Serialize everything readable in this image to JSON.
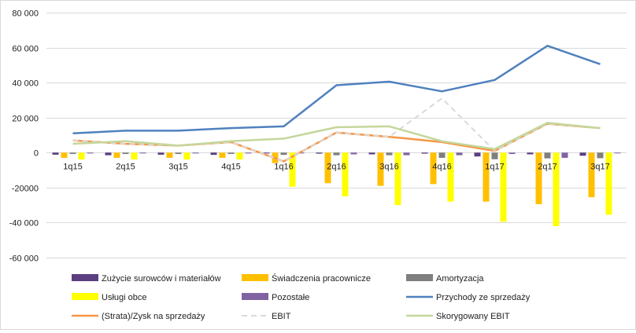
{
  "chart_data": {
    "type": "bar",
    "categories": [
      "1q15",
      "2q15",
      "3q15",
      "4q15",
      "1q16",
      "2q16",
      "3q16",
      "4q16",
      "1q17",
      "2q17",
      "3q17"
    ],
    "ylim": [
      -60000,
      80000
    ],
    "yticks": [
      80000,
      60000,
      40000,
      20000,
      0,
      -20000,
      -40000,
      -60000
    ],
    "ytick_labels": [
      "80 000",
      "60 000",
      "40 000",
      "20 000",
      "0",
      "-20000",
      "-40 000",
      "-60 000"
    ],
    "grid": true,
    "legend_position": "bottom",
    "bar_series": [
      {
        "name": "Zużycie surowców i materiałów",
        "color": "#5b3f80",
        "values": [
          -1200,
          -1500,
          -1200,
          -1300,
          -500,
          -600,
          -1000,
          -600,
          -2200,
          -1000,
          -1800
        ]
      },
      {
        "name": "Świadczenia pracownicze",
        "color": "#ffc000",
        "values": [
          -3000,
          -3000,
          -3000,
          -3000,
          -6000,
          -17500,
          -19000,
          -18000,
          -28000,
          -29500,
          -25500
        ]
      },
      {
        "name": "Amortyzacja",
        "color": "#7f7f7f",
        "values": [
          -800,
          -800,
          -800,
          -800,
          -1300,
          -1500,
          -1500,
          -3000,
          -3800,
          -3300,
          -3200
        ]
      },
      {
        "name": "Usługi obce",
        "color": "#ffff00",
        "values": [
          -4000,
          -4000,
          -4000,
          -4000,
          -19500,
          -25000,
          -30000,
          -28000,
          -39500,
          -42000,
          -35500
        ]
      },
      {
        "name": "Pozostałe",
        "color": "#8064a2",
        "values": [
          -500,
          -500,
          -500,
          -500,
          -500,
          -1000,
          -1500,
          -1500,
          -800,
          -3000,
          -400
        ]
      }
    ],
    "line_series": [
      {
        "name": "Przychody ze sprzedaży",
        "color": "#4f81bd",
        "dash": false,
        "values": [
          11000,
          12500,
          12500,
          14000,
          15000,
          38500,
          40500,
          35000,
          41500,
          61000,
          50500
        ]
      },
      {
        "name": "(Strata)/Zysk na sprzedaży",
        "color": "#f79646",
        "dash": false,
        "values": [
          7000,
          5000,
          4000,
          6000,
          -5000,
          11500,
          9000,
          6000,
          1000,
          16500,
          14000
        ]
      },
      {
        "name": "EBIT",
        "color": "#d9d9d9",
        "dash": true,
        "values": [
          7000,
          5000,
          4000,
          6000,
          -5000,
          11500,
          9000,
          31000,
          1000,
          16500,
          14000
        ]
      },
      {
        "name": "Skorygowany EBIT",
        "color": "#c4d79b",
        "dash": false,
        "values": [
          5000,
          6500,
          4000,
          6500,
          8000,
          14500,
          15000,
          6500,
          2000,
          17000,
          14000
        ]
      }
    ]
  }
}
